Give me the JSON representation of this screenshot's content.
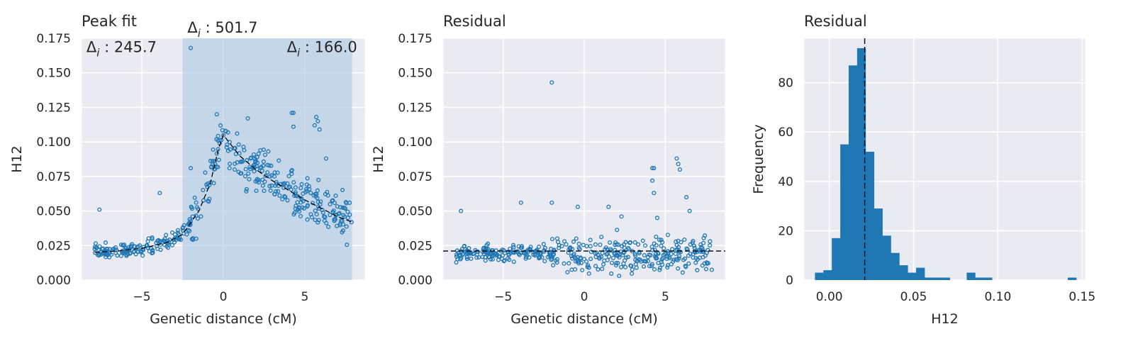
{
  "colors": {
    "axes_bg": "#eaeaf2",
    "grid": "#ffffff",
    "point": "#1f77b4",
    "bar": "#1f77b4",
    "window": "#b0cbe3",
    "line": "#000000"
  },
  "chart_data": [
    {
      "type": "scatter",
      "title": "Peak fit",
      "xlabel": "Genetic distance (cM)",
      "ylabel": "H12",
      "xlim": [
        -8.7,
        8.7
      ],
      "ylim": [
        0,
        0.175
      ],
      "xticks": [
        {
          "v": -5,
          "label": "−5"
        },
        {
          "v": 0,
          "label": "0"
        },
        {
          "v": 5,
          "label": "5"
        }
      ],
      "yticks": [
        {
          "v": 0,
          "label": "0.000"
        },
        {
          "v": 0.025,
          "label": "0.025"
        },
        {
          "v": 0.05,
          "label": "0.050"
        },
        {
          "v": 0.075,
          "label": "0.075"
        },
        {
          "v": 0.1,
          "label": "0.100"
        },
        {
          "v": 0.125,
          "label": "0.125"
        },
        {
          "v": 0.15,
          "label": "0.150"
        },
        {
          "v": 0.175,
          "label": "0.175"
        }
      ],
      "grid": true,
      "window": {
        "x0": -2.5,
        "x1": 7.9
      },
      "annotations": [
        {
          "id": "center",
          "prefix": "Δ",
          "sub": "i",
          "value": " : 501.7",
          "x": -2.2,
          "y": 0.179
        },
        {
          "id": "left",
          "prefix": "Δ",
          "sub": "i",
          "value": " : 245.7",
          "x": -8.4,
          "y": 0.165
        },
        {
          "id": "right",
          "prefix": "Δ",
          "sub": "i",
          "value": " : 166.0",
          "x": 3.9,
          "y": 0.165
        }
      ],
      "fit_line": {
        "x": [
          -7.9,
          -6.5,
          -5,
          -3.5,
          -2.5,
          -1.5,
          -0.8,
          -0.3,
          0,
          1,
          2,
          3,
          4,
          5,
          6,
          7,
          7.9
        ],
        "y": [
          0.02,
          0.021,
          0.023,
          0.027,
          0.033,
          0.05,
          0.07,
          0.095,
          0.105,
          0.09,
          0.08,
          0.072,
          0.065,
          0.058,
          0.052,
          0.046,
          0.042
        ]
      },
      "outliers": [
        {
          "x": -2.0,
          "y": 0.168
        },
        {
          "x": 4.2,
          "y": 0.121
        },
        {
          "x": 4.3,
          "y": 0.121
        },
        {
          "x": 5.7,
          "y": 0.118
        },
        {
          "x": 5.8,
          "y": 0.115
        },
        {
          "x": -0.4,
          "y": 0.12
        },
        {
          "x": 1.5,
          "y": 0.117
        },
        {
          "x": 5.6,
          "y": 0.112
        },
        {
          "x": 4.3,
          "y": 0.111
        },
        {
          "x": 5.9,
          "y": 0.109
        },
        {
          "x": -7.6,
          "y": 0.051
        },
        {
          "x": -3.9,
          "y": 0.063
        },
        {
          "x": 6.3,
          "y": 0.088
        },
        {
          "x": -2.0,
          "y": 0.081
        }
      ]
    },
    {
      "type": "scatter",
      "title": "Residual",
      "xlabel": "Genetic distance (cM)",
      "ylabel": "H12",
      "xlim": [
        -8.7,
        8.7
      ],
      "ylim": [
        0,
        0.175
      ],
      "xticks": [
        {
          "v": -5,
          "label": "−5"
        },
        {
          "v": 0,
          "label": "0"
        },
        {
          "v": 5,
          "label": "5"
        }
      ],
      "yticks": [
        {
          "v": 0,
          "label": "0.000"
        },
        {
          "v": 0.025,
          "label": "0.025"
        },
        {
          "v": 0.05,
          "label": "0.050"
        },
        {
          "v": 0.075,
          "label": "0.075"
        },
        {
          "v": 0.1,
          "label": "0.100"
        },
        {
          "v": 0.125,
          "label": "0.125"
        },
        {
          "v": 0.15,
          "label": "0.150"
        },
        {
          "v": 0.175,
          "label": "0.175"
        }
      ],
      "grid": true,
      "hline": 0.021,
      "outliers": [
        {
          "x": -2.0,
          "y": 0.143
        },
        {
          "x": 4.2,
          "y": 0.081
        },
        {
          "x": 4.3,
          "y": 0.081
        },
        {
          "x": 5.7,
          "y": 0.088
        },
        {
          "x": 5.8,
          "y": 0.084
        },
        {
          "x": 5.9,
          "y": 0.08
        },
        {
          "x": 4.2,
          "y": 0.072
        },
        {
          "x": 4.3,
          "y": 0.063
        },
        {
          "x": 6.3,
          "y": 0.06
        },
        {
          "x": -7.6,
          "y": 0.05
        },
        {
          "x": -3.9,
          "y": 0.056
        },
        {
          "x": -2.0,
          "y": 0.056
        },
        {
          "x": -0.4,
          "y": 0.053
        },
        {
          "x": 1.5,
          "y": 0.053
        },
        {
          "x": 4.5,
          "y": 0.045
        },
        {
          "x": 2.3,
          "y": 0.046
        },
        {
          "x": 6.5,
          "y": 0.05
        }
      ]
    },
    {
      "type": "bar",
      "title": "Residual",
      "xlabel": "H12",
      "ylabel": "Frequency",
      "xlim": [
        -0.015,
        0.152
      ],
      "ylim": [
        0,
        98
      ],
      "xticks": [
        {
          "v": 0,
          "label": "0.00"
        },
        {
          "v": 0.05,
          "label": "0.05"
        },
        {
          "v": 0.1,
          "label": "0.10"
        },
        {
          "v": 0.15,
          "label": "0.15"
        }
      ],
      "yticks": [
        {
          "v": 0,
          "label": "0"
        },
        {
          "v": 20,
          "label": "20"
        },
        {
          "v": 40,
          "label": "40"
        },
        {
          "v": 60,
          "label": "60"
        },
        {
          "v": 80,
          "label": "80"
        }
      ],
      "grid": true,
      "bin_start": -0.0085,
      "bin_width": 0.005,
      "counts": [
        3,
        4,
        17,
        55,
        87,
        94,
        52,
        29,
        18,
        11,
        6,
        3,
        5,
        1,
        1,
        1,
        0,
        0,
        3,
        1,
        1,
        0,
        0,
        0,
        0,
        0,
        0,
        0,
        0,
        0,
        1
      ],
      "vline": 0.021
    }
  ]
}
